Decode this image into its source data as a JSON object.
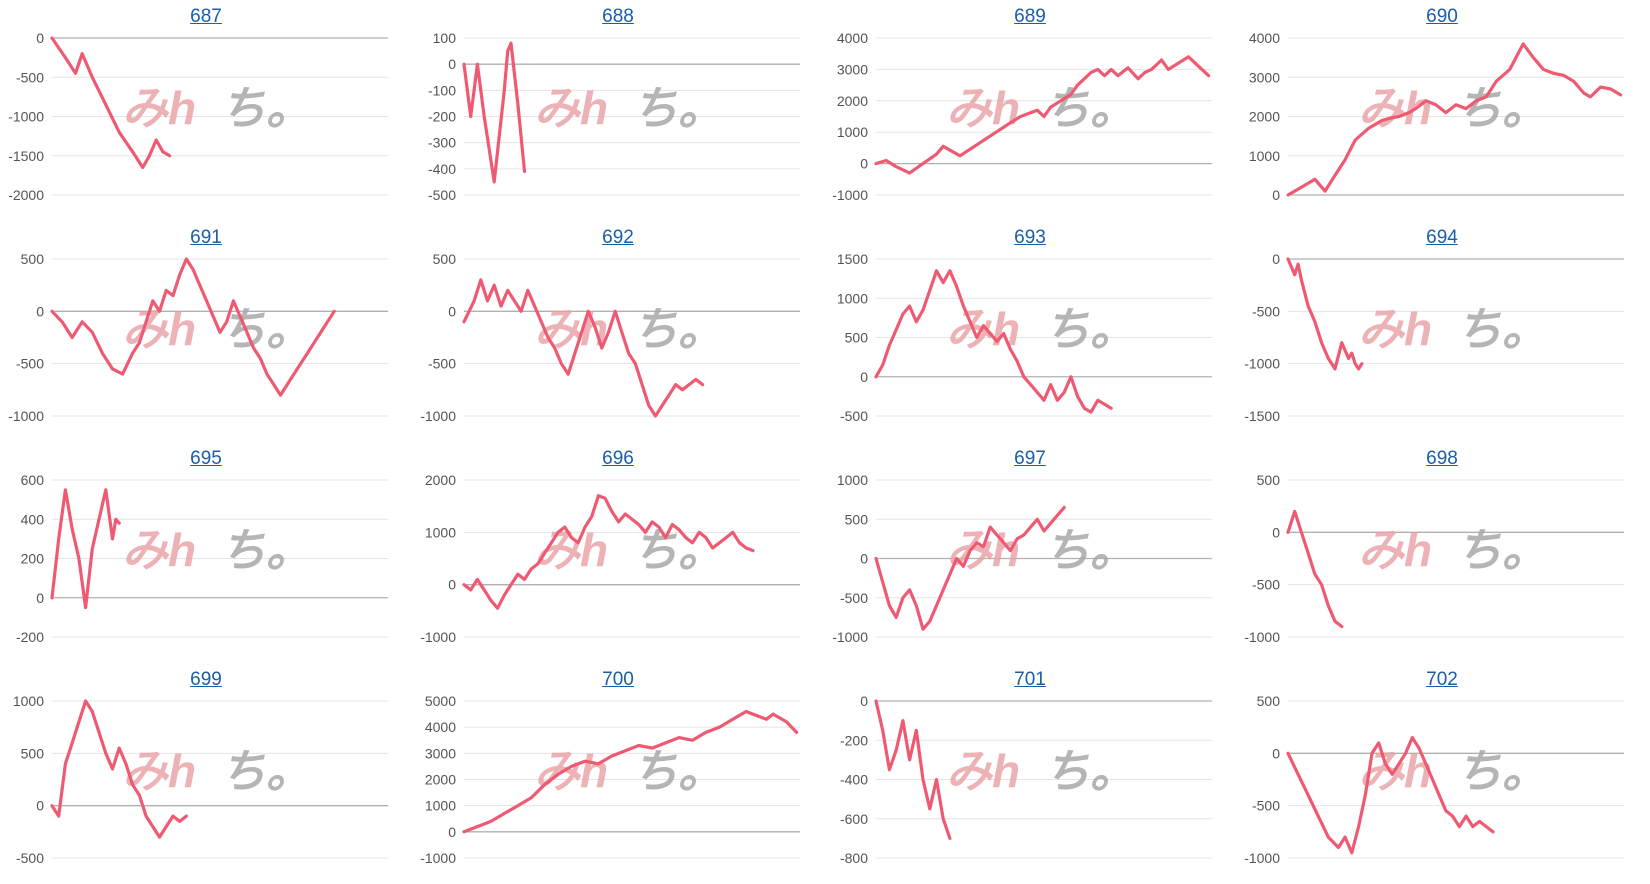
{
  "line_color": "#ef5a73",
  "title_color": "#1a5ea8",
  "watermark": {
    "left": "みh",
    "right": "ち。"
  },
  "chart_data": [
    {
      "type": "line",
      "title": "687",
      "yticks": [
        0,
        -500,
        -1000,
        -1500,
        -2000
      ],
      "ylim": [
        -2000,
        0
      ],
      "xmax": 100,
      "x": [
        0,
        4,
        7,
        9,
        12,
        16,
        20,
        24,
        27,
        29,
        31,
        33,
        35
      ],
      "values": [
        0,
        -250,
        -450,
        -200,
        -500,
        -850,
        -1200,
        -1450,
        -1650,
        -1500,
        -1300,
        -1450,
        -1500
      ]
    },
    {
      "type": "line",
      "title": "688",
      "yticks": [
        100,
        0,
        -100,
        -200,
        -300,
        -400,
        -500
      ],
      "ylim": [
        -500,
        100
      ],
      "xmax": 100,
      "x": [
        0,
        2,
        3,
        4,
        6,
        9,
        12,
        13,
        14,
        16,
        18
      ],
      "values": [
        0,
        -200,
        -100,
        0,
        -200,
        -450,
        -100,
        50,
        80,
        -150,
        -410
      ]
    },
    {
      "type": "line",
      "title": "689",
      "yticks": [
        4000,
        3000,
        2000,
        1000,
        0,
        -1000
      ],
      "ylim": [
        -1000,
        4000
      ],
      "xmax": 100,
      "x": [
        0,
        3,
        6,
        10,
        14,
        18,
        20,
        25,
        30,
        35,
        40,
        43,
        48,
        50,
        52,
        55,
        58,
        60,
        62,
        64,
        66,
        68,
        70,
        72,
        75,
        78,
        80,
        82,
        85,
        87,
        90,
        93,
        96,
        99
      ],
      "values": [
        0,
        100,
        -100,
        -300,
        0,
        300,
        550,
        250,
        600,
        950,
        1300,
        1500,
        1700,
        1500,
        1800,
        2000,
        2200,
        2500,
        2700,
        2900,
        3000,
        2800,
        3000,
        2800,
        3050,
        2700,
        2900,
        3000,
        3300,
        3000,
        3200,
        3400,
        3100,
        2800
      ]
    },
    {
      "type": "line",
      "title": "690",
      "yticks": [
        4000,
        3000,
        2000,
        1000,
        0
      ],
      "ylim": [
        0,
        4000
      ],
      "xmax": 100,
      "x": [
        0,
        4,
        8,
        11,
        14,
        17,
        20,
        24,
        28,
        30,
        33,
        36,
        38,
        41,
        44,
        47,
        50,
        53,
        56,
        59,
        62,
        66,
        70,
        73,
        76,
        79,
        82,
        85,
        88,
        90,
        93,
        96,
        99
      ],
      "values": [
        0,
        200,
        400,
        100,
        500,
        900,
        1400,
        1700,
        1900,
        1950,
        2000,
        2100,
        2200,
        2400,
        2300,
        2100,
        2300,
        2200,
        2400,
        2500,
        2900,
        3200,
        3850,
        3500,
        3200,
        3100,
        3050,
        2900,
        2600,
        2500,
        2750,
        2700,
        2550
      ]
    },
    {
      "type": "line",
      "title": "691",
      "yticks": [
        500,
        0,
        -500,
        -1000
      ],
      "ylim": [
        -1000,
        500
      ],
      "xmax": 100,
      "x": [
        0,
        3,
        6,
        9,
        12,
        15,
        18,
        21,
        24,
        26,
        28,
        30,
        32,
        34,
        36,
        38,
        40,
        42,
        44,
        46,
        48,
        50,
        52,
        54,
        56,
        58,
        60,
        62,
        64,
        66,
        68,
        70,
        72,
        74,
        76,
        78,
        80,
        82,
        84
      ],
      "values": [
        0,
        -100,
        -250,
        -100,
        -200,
        -400,
        -550,
        -600,
        -400,
        -300,
        -100,
        100,
        0,
        200,
        150,
        350,
        500,
        400,
        250,
        100,
        -50,
        -200,
        -100,
        100,
        -50,
        -200,
        -350,
        -450,
        -600,
        -700,
        -800,
        -700,
        -600,
        -500,
        -400,
        -300,
        -200,
        -100,
        0
      ]
    },
    {
      "type": "line",
      "title": "692",
      "yticks": [
        500,
        0,
        -500,
        -1000
      ],
      "ylim": [
        -1000,
        500
      ],
      "xmax": 100,
      "x": [
        0,
        3,
        5,
        7,
        9,
        11,
        13,
        15,
        17,
        19,
        21,
        23,
        25,
        27,
        29,
        31,
        33,
        35,
        37,
        39,
        41,
        43,
        45,
        47,
        49,
        51,
        53,
        55,
        57,
        59,
        61,
        63,
        65,
        67,
        69,
        71
      ],
      "values": [
        -100,
        100,
        300,
        100,
        250,
        50,
        200,
        100,
        0,
        200,
        50,
        -100,
        -250,
        -350,
        -500,
        -600,
        -400,
        -200,
        0,
        -150,
        -350,
        -200,
        0,
        -200,
        -400,
        -500,
        -700,
        -900,
        -1000,
        -900,
        -800,
        -700,
        -750,
        -700,
        -650,
        -700
      ]
    },
    {
      "type": "line",
      "title": "693",
      "yticks": [
        1500,
        1000,
        500,
        0,
        -500
      ],
      "ylim": [
        -500,
        1500
      ],
      "xmax": 100,
      "x": [
        0,
        2,
        4,
        6,
        8,
        10,
        12,
        14,
        16,
        18,
        20,
        22,
        24,
        26,
        28,
        30,
        32,
        34,
        36,
        38,
        40,
        42,
        44,
        46,
        48,
        50,
        52,
        54,
        56,
        58,
        60,
        62,
        64,
        66,
        68,
        70
      ],
      "values": [
        0,
        150,
        400,
        600,
        800,
        900,
        700,
        850,
        1100,
        1350,
        1200,
        1350,
        1150,
        900,
        700,
        500,
        650,
        550,
        450,
        550,
        350,
        200,
        0,
        -100,
        -200,
        -300,
        -100,
        -300,
        -200,
        0,
        -250,
        -400,
        -450,
        -300,
        -350,
        -400
      ]
    },
    {
      "type": "line",
      "title": "694",
      "yticks": [
        0,
        -500,
        -1000,
        -1500
      ],
      "ylim": [
        -1500,
        0
      ],
      "xmax": 100,
      "x": [
        0,
        2,
        3,
        4,
        6,
        8,
        10,
        12,
        14,
        16,
        18,
        19,
        20,
        21,
        22
      ],
      "values": [
        0,
        -150,
        -50,
        -200,
        -450,
        -600,
        -800,
        -950,
        -1050,
        -800,
        -950,
        -900,
        -1000,
        -1050,
        -1000
      ]
    },
    {
      "type": "line",
      "title": "695",
      "yticks": [
        600,
        400,
        200,
        0,
        -200
      ],
      "ylim": [
        -200,
        600
      ],
      "xmax": 100,
      "x": [
        0,
        2,
        4,
        6,
        8,
        10,
        12,
        14,
        16,
        18,
        19,
        20
      ],
      "values": [
        0,
        300,
        550,
        350,
        200,
        -50,
        250,
        400,
        550,
        300,
        400,
        380
      ]
    },
    {
      "type": "line",
      "title": "696",
      "yticks": [
        2000,
        1000,
        0,
        -1000
      ],
      "ylim": [
        -1000,
        2000
      ],
      "xmax": 100,
      "x": [
        0,
        2,
        4,
        6,
        8,
        10,
        12,
        14,
        16,
        18,
        20,
        22,
        24,
        26,
        28,
        30,
        32,
        34,
        36,
        38,
        40,
        42,
        44,
        46,
        48,
        50,
        52,
        54,
        56,
        58,
        60,
        62,
        64,
        66,
        68,
        70,
        72,
        74,
        76,
        78,
        80,
        82,
        84,
        86
      ],
      "values": [
        0,
        -100,
        100,
        -100,
        -300,
        -450,
        -200,
        0,
        200,
        100,
        300,
        400,
        600,
        800,
        1000,
        1100,
        900,
        800,
        1100,
        1300,
        1700,
        1650,
        1400,
        1200,
        1350,
        1250,
        1150,
        1000,
        1200,
        1100,
        900,
        1150,
        1050,
        900,
        800,
        1000,
        900,
        700,
        800,
        900,
        1000,
        800,
        700,
        650
      ]
    },
    {
      "type": "line",
      "title": "697",
      "yticks": [
        1000,
        500,
        0,
        -500,
        -1000
      ],
      "ylim": [
        -1000,
        1000
      ],
      "xmax": 100,
      "x": [
        0,
        2,
        4,
        6,
        8,
        10,
        12,
        14,
        16,
        18,
        20,
        22,
        24,
        26,
        28,
        30,
        32,
        34,
        36,
        38,
        40,
        42,
        44,
        46,
        48,
        50,
        52,
        54,
        56
      ],
      "values": [
        0,
        -300,
        -600,
        -750,
        -500,
        -400,
        -600,
        -900,
        -800,
        -600,
        -400,
        -200,
        0,
        -100,
        100,
        200,
        150,
        400,
        300,
        200,
        100,
        250,
        300,
        400,
        500,
        350,
        450,
        550,
        650
      ]
    },
    {
      "type": "line",
      "title": "698",
      "yticks": [
        500,
        0,
        -500,
        -1000
      ],
      "ylim": [
        -1000,
        500
      ],
      "xmax": 100,
      "x": [
        0,
        2,
        4,
        6,
        8,
        10,
        12,
        14,
        16
      ],
      "values": [
        0,
        200,
        0,
        -200,
        -400,
        -500,
        -700,
        -850,
        -900
      ]
    },
    {
      "type": "line",
      "title": "699",
      "yticks": [
        1000,
        500,
        0,
        -500
      ],
      "ylim": [
        -500,
        1000
      ],
      "xmax": 100,
      "x": [
        0,
        2,
        4,
        6,
        8,
        10,
        12,
        14,
        16,
        18,
        20,
        22,
        24,
        26,
        28,
        30,
        32,
        34,
        36,
        38,
        40
      ],
      "values": [
        0,
        -100,
        400,
        600,
        800,
        1000,
        900,
        700,
        500,
        350,
        550,
        400,
        200,
        100,
        -100,
        -200,
        -300,
        -200,
        -100,
        -150,
        -100
      ]
    },
    {
      "type": "line",
      "title": "700",
      "yticks": [
        5000,
        4000,
        3000,
        2000,
        1000,
        0,
        -1000
      ],
      "ylim": [
        -1000,
        5000
      ],
      "xmax": 100,
      "x": [
        0,
        4,
        8,
        12,
        16,
        20,
        24,
        28,
        32,
        36,
        40,
        44,
        48,
        52,
        56,
        60,
        64,
        68,
        72,
        76,
        80,
        84,
        88,
        90,
        92,
        96,
        99
      ],
      "values": [
        0,
        200,
        400,
        700,
        1000,
        1300,
        1800,
        2200,
        2500,
        2700,
        2600,
        2900,
        3100,
        3300,
        3200,
        3400,
        3600,
        3500,
        3800,
        4000,
        4300,
        4600,
        4400,
        4300,
        4500,
        4200,
        3800
      ]
    },
    {
      "type": "line",
      "title": "701",
      "yticks": [
        0,
        -200,
        -400,
        -600,
        -800
      ],
      "ylim": [
        -800,
        0
      ],
      "xmax": 100,
      "x": [
        0,
        2,
        4,
        6,
        8,
        10,
        12,
        14,
        16,
        18,
        20,
        22
      ],
      "values": [
        0,
        -150,
        -350,
        -250,
        -100,
        -300,
        -150,
        -400,
        -550,
        -400,
        -600,
        -700
      ]
    },
    {
      "type": "line",
      "title": "702",
      "yticks": [
        500,
        0,
        -500,
        -1000
      ],
      "ylim": [
        -1000,
        500
      ],
      "xmax": 100,
      "x": [
        0,
        3,
        6,
        9,
        12,
        15,
        17,
        19,
        21,
        23,
        25,
        27,
        29,
        31,
        33,
        35,
        37,
        39,
        41,
        43,
        45,
        47,
        49,
        51,
        53,
        55,
        57,
        59,
        61
      ],
      "values": [
        0,
        -200,
        -400,
        -600,
        -800,
        -900,
        -800,
        -950,
        -700,
        -400,
        0,
        100,
        -100,
        -200,
        -100,
        0,
        150,
        50,
        -100,
        -250,
        -400,
        -550,
        -600,
        -700,
        -600,
        -700,
        -650,
        -700,
        -750
      ]
    }
  ]
}
